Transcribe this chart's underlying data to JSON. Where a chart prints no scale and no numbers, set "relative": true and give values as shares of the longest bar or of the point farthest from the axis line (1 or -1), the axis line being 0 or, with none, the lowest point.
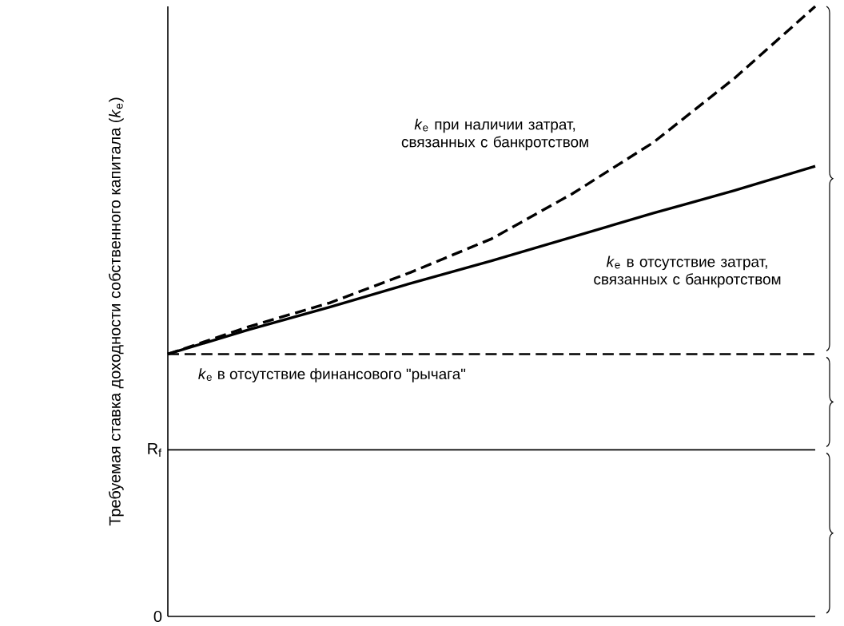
{
  "chart_data": {
    "type": "line",
    "relative": true,
    "ylabel": "Требуемая ставка доходности собственного капитала (*k*$_{e}$)",
    "categories": [
      null,
      null,
      null,
      null,
      null,
      null,
      null,
      null,
      null
    ],
    "series": [
      {
        "name": "*k*$_{e}$ при наличии затрат, связанных с банкротством",
        "color": "#000000",
        "line_style": "dashed",
        "values": [
          0.43,
          0.475,
          0.514,
          0.564,
          0.619,
          0.693,
          0.777,
          0.882,
          1
        ]
      },
      {
        "name": "*k*$_{e}$ в отсутствие затрат, связанных с банкротством",
        "color": "#000000",
        "line_style": "solid",
        "values": [
          0.43,
          0.47,
          0.507,
          0.546,
          0.583,
          0.622,
          0.661,
          0.698,
          0.738
        ]
      },
      {
        "name": "*k*$_{e}$ в отсутствие финансового \"рычага\"",
        "color": "#000000",
        "line_style": "dashed",
        "values": [
          0.43,
          0.43,
          0.43,
          0.43,
          0.43,
          0.43,
          0.43,
          0.43,
          0.43
        ]
      }
    ],
    "ref_lines": [
      {
        "axis": "y",
        "value": 0.273,
        "label": "R$_{f}$"
      }
    ],
    "annotations": [
      "0"
    ]
  }
}
